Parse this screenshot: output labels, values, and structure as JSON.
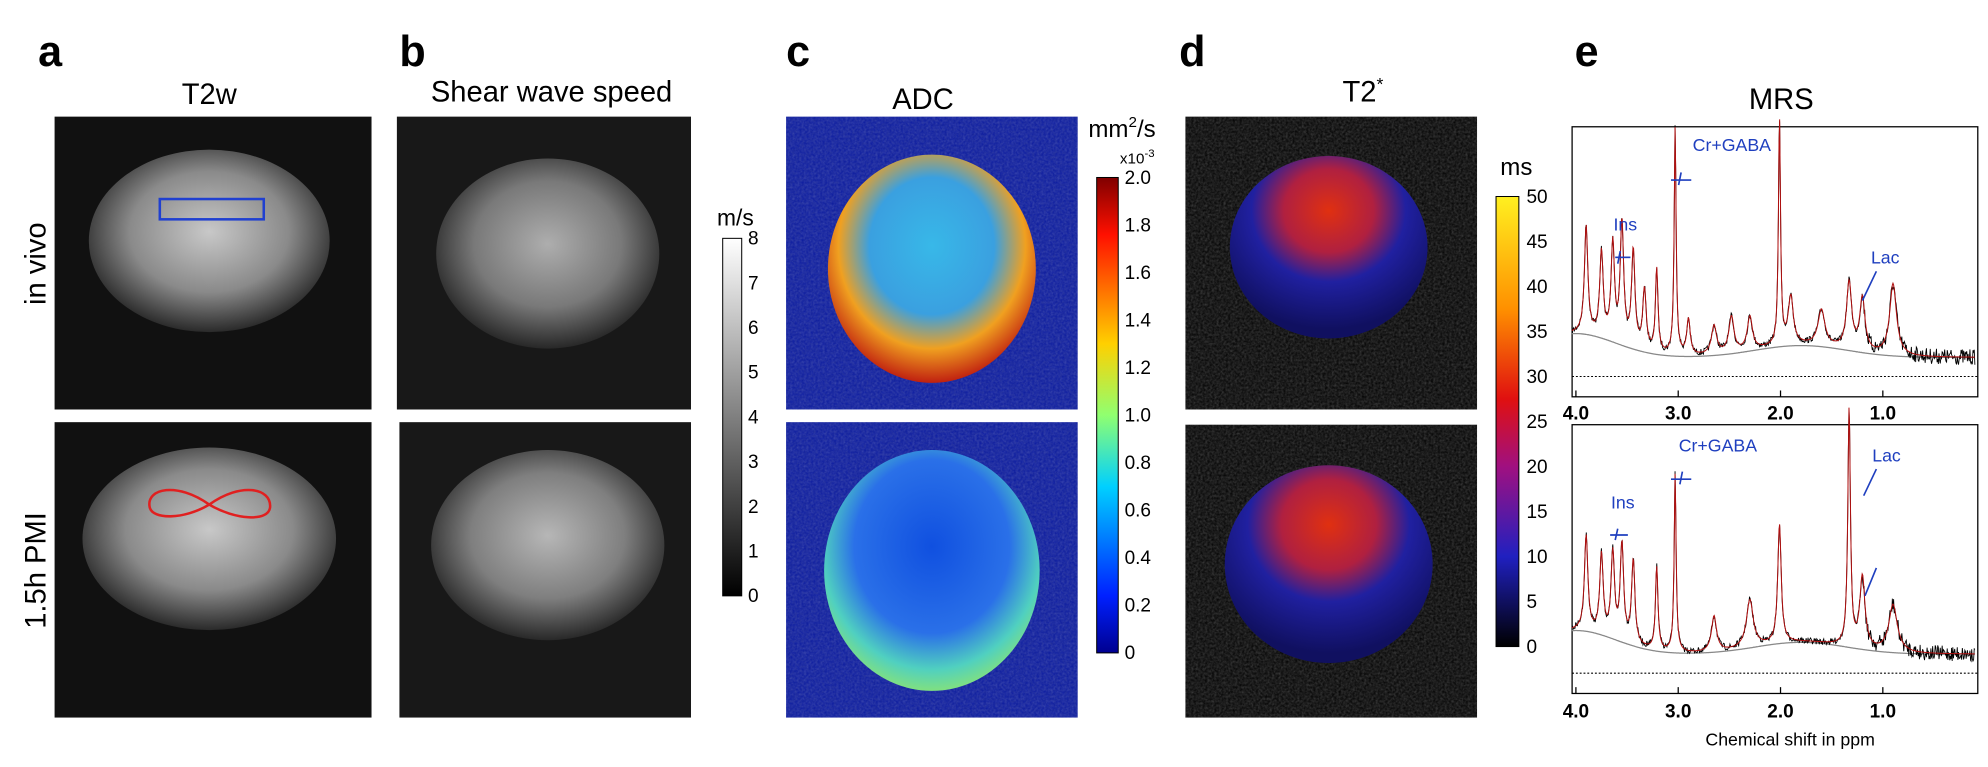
{
  "panels": [
    {
      "letter": "a",
      "title": "T2w"
    },
    {
      "letter": "b",
      "title": "Shear wave speed"
    },
    {
      "letter": "c",
      "title": "ADC"
    },
    {
      "letter": "d",
      "title": "T2",
      "title_sup": "*"
    },
    {
      "letter": "e",
      "title": "MRS"
    }
  ],
  "row_labels": [
    "in vivo",
    "1.5h PMI"
  ],
  "colorbars": [
    {
      "unit": "m/s",
      "ticks": [
        8,
        7,
        6,
        5,
        4,
        3,
        2,
        1,
        0
      ]
    },
    {
      "unit": "mm",
      "unit_sup": "2",
      "unit_rest": "/s",
      "scale": "x10",
      "scale_sup": "-3",
      "ticks": [
        "2.0",
        "1.8",
        "1.6",
        "1.4",
        "1.2",
        "1.0",
        "0.8",
        "0.6",
        "0.4",
        "0.2",
        "0"
      ]
    },
    {
      "unit": "ms",
      "ticks": [
        50,
        45,
        40,
        35,
        30,
        25,
        20,
        15,
        10,
        5,
        0
      ]
    }
  ],
  "mrs": {
    "xticks": [
      "4.0",
      "3.0",
      "2.0",
      "1.0"
    ],
    "xlabel": "Chemical shift in ppm",
    "top_annotations": [
      "Ins",
      "Cr+GABA",
      "Lac"
    ],
    "bottom_annotations": [
      "Ins",
      "Cr+GABA",
      "Lac"
    ]
  }
}
